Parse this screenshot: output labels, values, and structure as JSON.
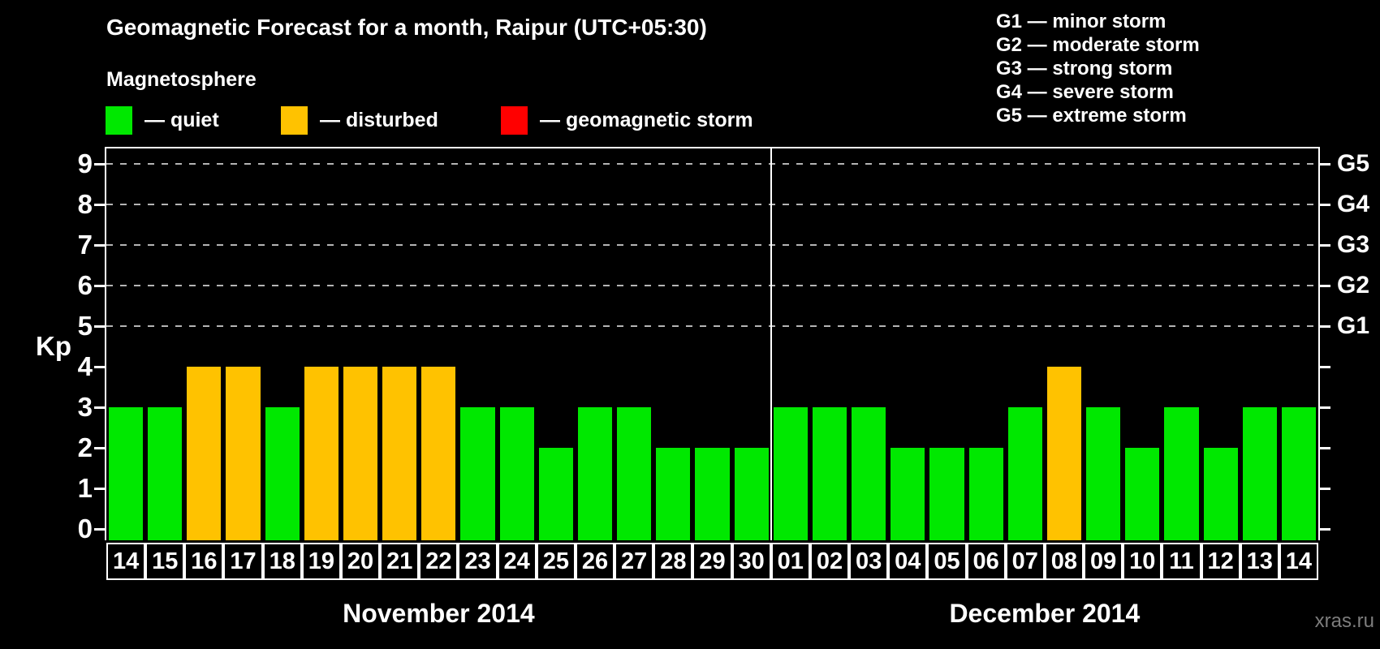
{
  "header": {
    "title": "Geomagnetic Forecast for a month, Raipur (UTC+05:30)",
    "subtitle": "Magnetosphere"
  },
  "legend": {
    "items": [
      {
        "name": "quiet",
        "label": "— quiet",
        "color": "#00e800"
      },
      {
        "name": "disturbed",
        "label": "— disturbed",
        "color": "#ffc200"
      },
      {
        "name": "storm",
        "label": "— geomagnetic storm",
        "color": "#ff0000"
      }
    ]
  },
  "g_scale_legend": {
    "items": [
      "G1 — minor storm",
      "G2 — moderate storm",
      "G3 — strong storm",
      "G4 — severe storm",
      "G5 — extreme storm"
    ]
  },
  "watermark": "xras.ru",
  "chart_data": {
    "type": "bar",
    "title": "Geomagnetic Forecast for a month, Raipur (UTC+05:30)",
    "ylabel": "Kp",
    "ylim": [
      0,
      9
    ],
    "yticks": [
      0,
      1,
      2,
      3,
      4,
      5,
      6,
      7,
      8,
      9
    ],
    "gridlines_at_kp": [
      5,
      6,
      7,
      8,
      9
    ],
    "grid": "dashed horizontal at storm levels only",
    "right_axis": [
      {
        "kp": 5,
        "label": "G1"
      },
      {
        "kp": 6,
        "label": "G2"
      },
      {
        "kp": 7,
        "label": "G3"
      },
      {
        "kp": 8,
        "label": "G4"
      },
      {
        "kp": 9,
        "label": "G5"
      }
    ],
    "colors": {
      "quiet": "#00e800",
      "disturbed": "#ffc200",
      "storm": "#ff0000"
    },
    "color_rule": {
      "quiet_kp_max": 3,
      "disturbed_kp_max": 4,
      "storm_kp_min": 5
    },
    "groups": [
      {
        "month": "November 2014",
        "days": [
          "14",
          "15",
          "16",
          "17",
          "18",
          "19",
          "20",
          "21",
          "22",
          "23",
          "24",
          "25",
          "26",
          "27",
          "28",
          "29",
          "30"
        ],
        "kp": [
          3,
          3,
          4,
          4,
          3,
          4,
          4,
          4,
          4,
          3,
          3,
          2,
          3,
          3,
          2,
          2,
          2
        ]
      },
      {
        "month": "December 2014",
        "days": [
          "01",
          "02",
          "03",
          "04",
          "05",
          "06",
          "07",
          "08",
          "09",
          "10",
          "11",
          "12",
          "13",
          "14"
        ],
        "kp": [
          3,
          3,
          3,
          2,
          2,
          2,
          3,
          4,
          3,
          2,
          3,
          2,
          3,
          3
        ]
      }
    ]
  }
}
